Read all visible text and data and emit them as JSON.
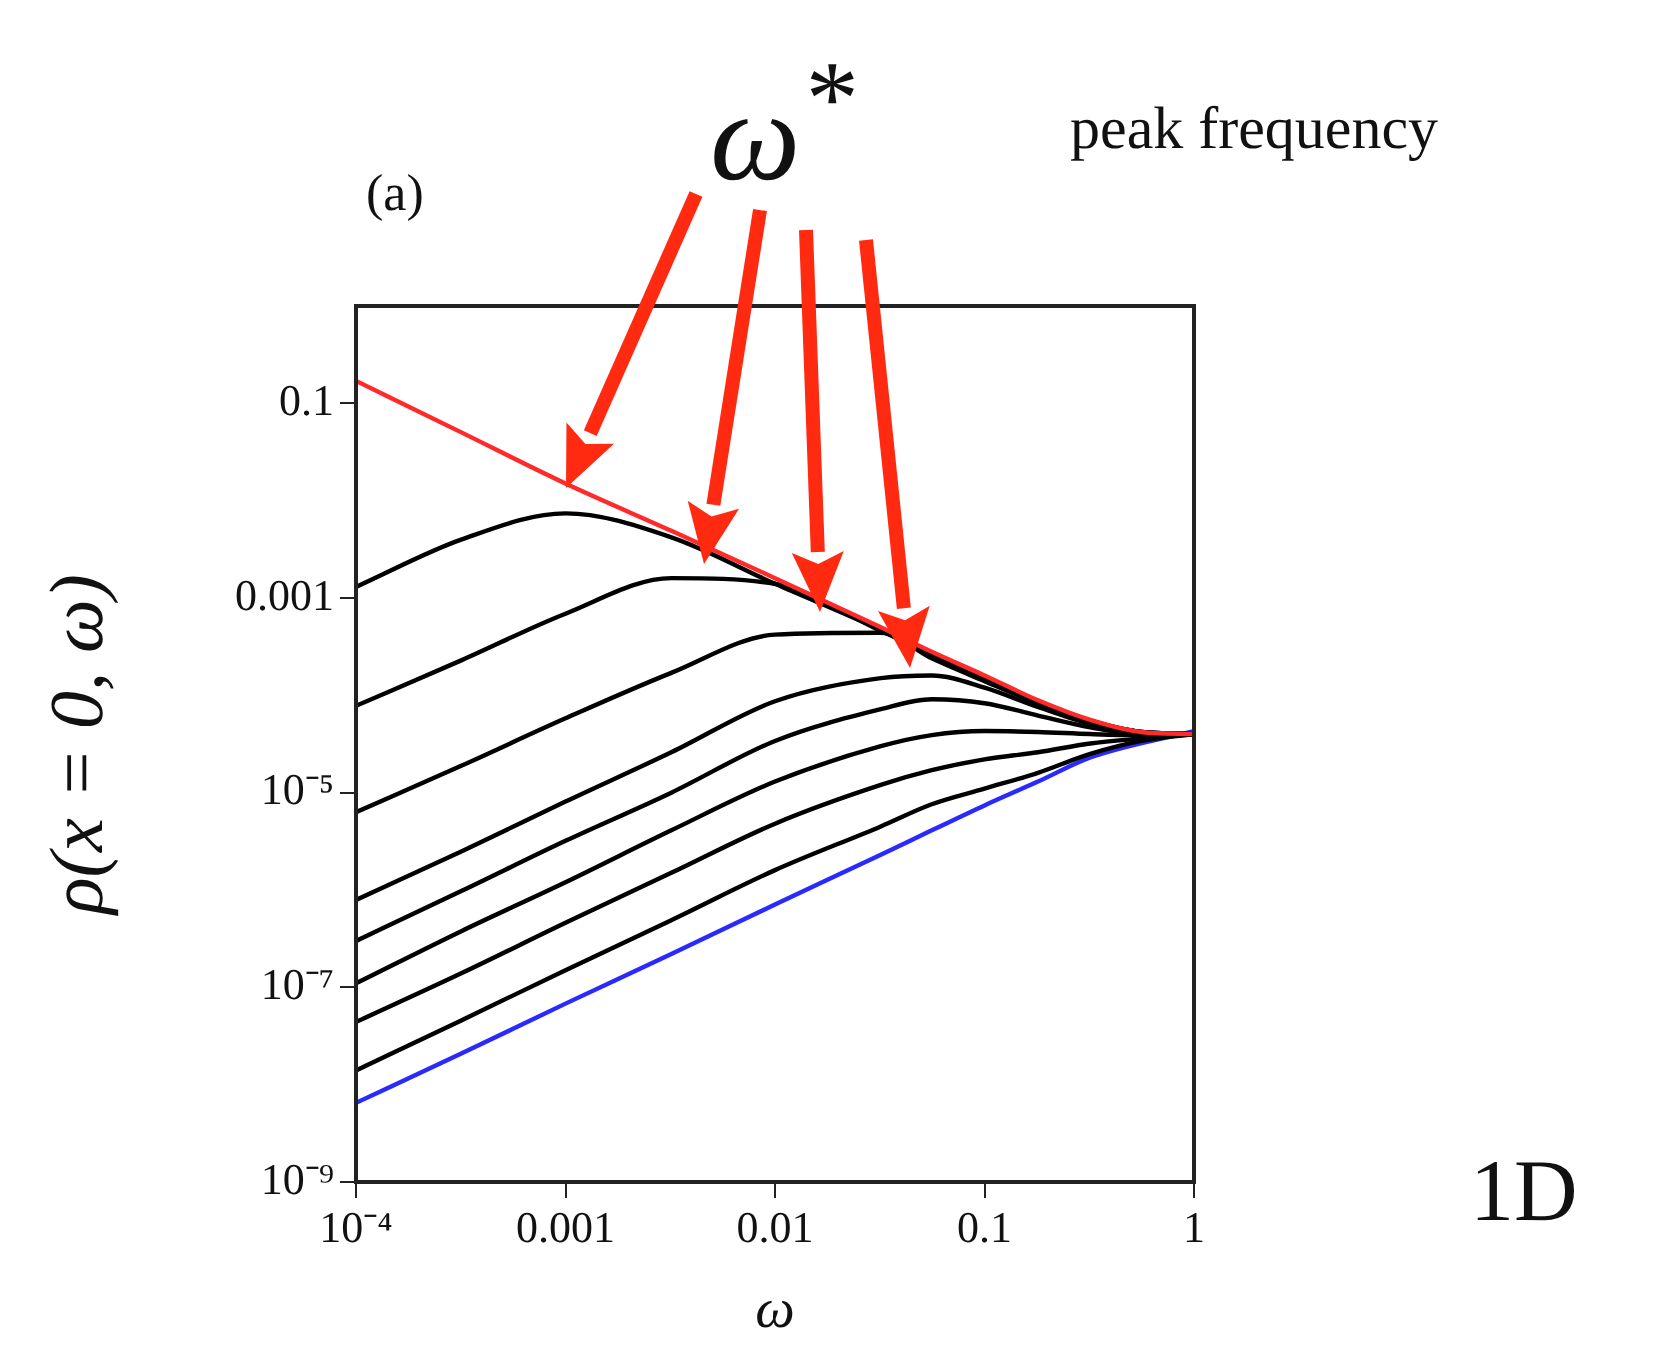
{
  "chart_data": {
    "type": "line",
    "xlabel": "ω",
    "ylabel": "ρ(x = 0, ω)",
    "log": "xy",
    "grid": false,
    "legend": false,
    "marker": "none",
    "line_style": "solid",
    "x": [
      0.0001,
      0.00032,
      0.001,
      0.0032,
      0.01,
      0.032,
      0.056,
      0.1,
      0.18,
      0.32,
      0.56,
      1
    ],
    "xlim": [
      0.0001,
      1
    ],
    "ylim": [
      1e-09,
      1
    ],
    "xticks": [
      {
        "value": 0.0001,
        "label": "10⁻⁴"
      },
      0.001,
      0.01,
      0.1,
      1
    ],
    "yticks": [
      {
        "value": 1e-09,
        "label": "10⁻⁹"
      },
      {
        "value": 1e-07,
        "label": "10⁻⁷"
      },
      {
        "value": 1e-05,
        "label": "10⁻⁵"
      },
      0.001,
      0.1
    ],
    "series": [
      {
        "color": "#ff2a2a",
        "values": [
          0.17,
          0.05,
          0.015,
          0.0049,
          0.0016,
          0.0005,
          0.00028,
          0.00016,
          8.9e-05,
          5.6e-05,
          4.2e-05,
          4e-05
        ]
      },
      {
        "color": "#000000",
        "values": [
          0.0013,
          0.004,
          0.0074,
          0.0042,
          0.0014,
          0.00047,
          0.00026,
          0.00015,
          8.5e-05,
          5.5e-05,
          4.2e-05,
          4e-05
        ]
      },
      {
        "color": "#000000",
        "values": [
          7.8e-05,
          0.00023,
          0.00069,
          0.0016,
          0.0014,
          0.00046,
          0.00026,
          0.00015,
          8.5e-05,
          5.5e-05,
          4.2e-05,
          4e-05
        ]
      },
      {
        "color": "#000000",
        "values": [
          6.3e-06,
          1.9e-05,
          5.8e-05,
          0.00017,
          0.00042,
          0.00044,
          0.00024,
          0.00014,
          8.3e-05,
          5.4e-05,
          4.2e-05,
          4e-05
        ]
      },
      {
        "color": "#000000",
        "values": [
          7.9e-07,
          2.5e-06,
          8.1e-06,
          2.6e-05,
          8.7e-05,
          0.00015,
          0.00016,
          0.00012,
          7.6e-05,
          5.1e-05,
          4.1e-05,
          4e-05
        ]
      },
      {
        "color": "#000000",
        "values": [
          3e-07,
          9.8e-07,
          3.2e-06,
          1e-05,
          3.4e-05,
          7.2e-05,
          9.1e-05,
          8.3e-05,
          6.2e-05,
          4.7e-05,
          4e-05,
          4e-05
        ]
      },
      {
        "color": "#000000",
        "values": [
          1.1e-07,
          3.8e-07,
          1.2e-06,
          4.1e-06,
          1.3e-05,
          3e-05,
          3.9e-05,
          4.3e-05,
          4.2e-05,
          4e-05,
          3.9e-05,
          4e-05
        ]
      },
      {
        "color": "#000000",
        "values": [
          4.4e-08,
          1.4e-07,
          4.6e-07,
          1.5e-06,
          4.8e-06,
          1.2e-05,
          1.7e-05,
          2.2e-05,
          2.6e-05,
          3.2e-05,
          3.6e-05,
          4e-05
        ]
      },
      {
        "color": "#000000",
        "values": [
          1.4e-08,
          4.6e-08,
          1.5e-07,
          4.9e-07,
          1.6e-06,
          4.5e-06,
          7.6e-06,
          1.1e-05,
          1.6e-05,
          2.5e-05,
          3.4e-05,
          4e-05
        ]
      },
      {
        "color": "#2a2aff",
        "values": [
          6.5e-09,
          2.1e-08,
          6.8e-08,
          2.2e-07,
          7.1e-07,
          2.3e-06,
          4.1e-06,
          7.4e-06,
          1.3e-05,
          2.3e-05,
          null,
          4.3e-05
        ]
      }
    ],
    "annotations": [
      "(a)",
      "ω$^{*}$",
      "peak frequency",
      "1D"
    ]
  }
}
